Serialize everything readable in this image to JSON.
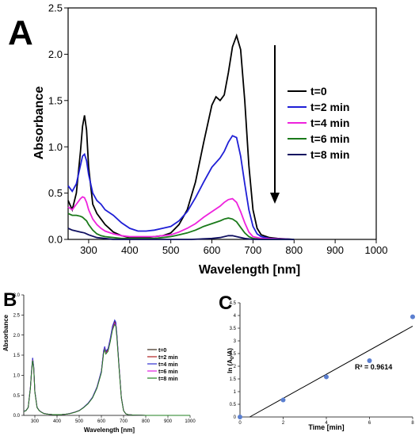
{
  "panels": {
    "a": {
      "letter": "A"
    },
    "b": {
      "letter": "B"
    },
    "c": {
      "letter": "C"
    }
  },
  "chart_data": [
    {
      "panel": "A",
      "type": "line",
      "xlabel": "Wavelength [nm]",
      "ylabel": "Absorbance",
      "xlim": [
        250,
        1000
      ],
      "ylim": [
        0,
        2.5
      ],
      "xticks": [
        300,
        400,
        500,
        600,
        700,
        800,
        900,
        1000
      ],
      "yticks": [
        0.0,
        0.5,
        1.0,
        1.5,
        2.0,
        2.5
      ],
      "legend_position": "right",
      "annotation": "downward arrow indicating decreasing absorbance over time",
      "series": [
        {
          "name": "t=0",
          "color": "#000000",
          "x": [
            250,
            260,
            270,
            280,
            285,
            290,
            295,
            300,
            310,
            320,
            330,
            340,
            360,
            380,
            400,
            420,
            440,
            460,
            480,
            500,
            520,
            540,
            560,
            580,
            600,
            610,
            620,
            630,
            640,
            650,
            660,
            670,
            680,
            690,
            700,
            710,
            720,
            740,
            760,
            800
          ],
          "y": [
            0.42,
            0.32,
            0.5,
            0.95,
            1.22,
            1.34,
            1.18,
            0.78,
            0.38,
            0.28,
            0.22,
            0.16,
            0.08,
            0.04,
            0.02,
            0.02,
            0.02,
            0.03,
            0.04,
            0.07,
            0.16,
            0.32,
            0.62,
            1.05,
            1.45,
            1.54,
            1.5,
            1.56,
            1.8,
            2.08,
            2.2,
            2.05,
            1.5,
            0.8,
            0.32,
            0.12,
            0.05,
            0.02,
            0.01,
            0.0
          ]
        },
        {
          "name": "t=2 min",
          "color": "#1f1fd6",
          "x": [
            250,
            260,
            270,
            280,
            285,
            290,
            295,
            300,
            310,
            320,
            330,
            340,
            360,
            380,
            400,
            420,
            440,
            460,
            480,
            500,
            520,
            540,
            560,
            580,
            600,
            620,
            630,
            640,
            650,
            660,
            670,
            680,
            690,
            700,
            710,
            720,
            740,
            800
          ],
          "y": [
            0.58,
            0.52,
            0.6,
            0.8,
            0.9,
            0.92,
            0.85,
            0.7,
            0.5,
            0.42,
            0.38,
            0.32,
            0.26,
            0.18,
            0.12,
            0.09,
            0.09,
            0.1,
            0.12,
            0.14,
            0.2,
            0.3,
            0.45,
            0.62,
            0.78,
            0.88,
            0.95,
            1.05,
            1.12,
            1.1,
            0.9,
            0.6,
            0.32,
            0.14,
            0.06,
            0.03,
            0.01,
            0.0
          ]
        },
        {
          "name": "t=4 min",
          "color": "#ee22dd",
          "x": [
            250,
            260,
            270,
            280,
            285,
            290,
            295,
            300,
            310,
            320,
            330,
            340,
            360,
            380,
            400,
            420,
            440,
            460,
            480,
            500,
            520,
            540,
            560,
            580,
            600,
            620,
            630,
            640,
            650,
            660,
            670,
            680,
            690,
            700,
            720,
            800
          ],
          "y": [
            0.35,
            0.32,
            0.38,
            0.44,
            0.46,
            0.45,
            0.4,
            0.32,
            0.22,
            0.16,
            0.12,
            0.09,
            0.06,
            0.04,
            0.03,
            0.03,
            0.03,
            0.03,
            0.04,
            0.05,
            0.08,
            0.12,
            0.17,
            0.24,
            0.3,
            0.36,
            0.4,
            0.43,
            0.44,
            0.4,
            0.3,
            0.18,
            0.08,
            0.03,
            0.01,
            0.0
          ]
        },
        {
          "name": "t=6 min",
          "color": "#1a7a1a",
          "x": [
            250,
            260,
            270,
            280,
            285,
            290,
            295,
            300,
            310,
            320,
            330,
            340,
            360,
            380,
            400,
            420,
            440,
            460,
            480,
            500,
            520,
            540,
            560,
            580,
            600,
            620,
            630,
            640,
            650,
            660,
            670,
            680,
            690,
            700,
            720,
            800
          ],
          "y": [
            0.28,
            0.26,
            0.26,
            0.25,
            0.24,
            0.22,
            0.2,
            0.16,
            0.1,
            0.06,
            0.04,
            0.03,
            0.02,
            0.01,
            0.01,
            0.01,
            0.01,
            0.01,
            0.02,
            0.03,
            0.05,
            0.07,
            0.1,
            0.14,
            0.17,
            0.2,
            0.22,
            0.23,
            0.22,
            0.19,
            0.13,
            0.07,
            0.03,
            0.01,
            0.0,
            0.0
          ]
        },
        {
          "name": "t=8 min",
          "color": "#101060",
          "x": [
            250,
            260,
            270,
            280,
            290,
            300,
            320,
            340,
            360,
            400,
            450,
            500,
            550,
            600,
            620,
            640,
            650,
            660,
            680,
            700,
            800
          ],
          "y": [
            0.12,
            0.1,
            0.09,
            0.08,
            0.07,
            0.05,
            0.02,
            0.01,
            0.0,
            0.0,
            0.0,
            0.0,
            0.0,
            0.01,
            0.02,
            0.04,
            0.04,
            0.03,
            0.01,
            0.0,
            0.0
          ]
        }
      ]
    },
    {
      "panel": "B",
      "type": "line",
      "xlabel": "Wavelength [nm]",
      "ylabel": "Absorbance",
      "xlim": [
        250,
        1000
      ],
      "ylim": [
        0,
        3.0
      ],
      "xticks": [
        300,
        400,
        500,
        600,
        700,
        800,
        900,
        1000
      ],
      "yticks": [
        0.0,
        0.5,
        1.0,
        1.5,
        2.0,
        2.5,
        3.0
      ],
      "legend_position": "right",
      "series": [
        {
          "name": "t=0",
          "color": "#3a2a1a",
          "scale": 1.0
        },
        {
          "name": "t=2 min",
          "color": "#b02020",
          "scale": 0.985
        },
        {
          "name": "t=4 min",
          "color": "#3030d0",
          "scale": 1.01
        },
        {
          "name": "t=6 min",
          "color": "#e020e0",
          "scale": 0.975
        },
        {
          "name": "t=8 min",
          "color": "#208020",
          "scale": 0.965
        }
      ],
      "x": [
        250,
        260,
        270,
        280,
        285,
        290,
        295,
        300,
        310,
        320,
        330,
        340,
        360,
        380,
        400,
        420,
        440,
        460,
        480,
        500,
        520,
        540,
        560,
        580,
        600,
        610,
        615,
        620,
        630,
        640,
        650,
        660,
        665,
        670,
        680,
        690,
        700,
        710,
        720,
        740,
        800,
        1000
      ],
      "y": [
        0.1,
        0.12,
        0.2,
        0.7,
        1.1,
        1.42,
        1.2,
        0.6,
        0.2,
        0.12,
        0.08,
        0.05,
        0.03,
        0.02,
        0.02,
        0.02,
        0.03,
        0.05,
        0.08,
        0.12,
        0.2,
        0.3,
        0.45,
        0.7,
        1.1,
        1.6,
        1.7,
        1.58,
        1.65,
        1.9,
        2.2,
        2.35,
        2.3,
        2.0,
        1.2,
        0.45,
        0.12,
        0.04,
        0.02,
        0.01,
        0.0,
        0.0
      ]
    },
    {
      "panel": "C",
      "type": "scatter",
      "xlabel": "Time [min]",
      "ylabel": "ln (A0/A)",
      "ylabel_main": "ln (A",
      "ylabel_sub": "0",
      "ylabel_tail": "/A)",
      "xlim": [
        0,
        8
      ],
      "ylim": [
        0,
        4.5
      ],
      "xticks": [
        0,
        2,
        4,
        6,
        8
      ],
      "yticks": [
        0,
        0.5,
        1,
        1.5,
        2,
        2.5,
        3,
        3.5,
        4,
        4.5
      ],
      "x": [
        0,
        2,
        4,
        6,
        8
      ],
      "y": [
        0,
        0.67,
        1.58,
        2.22,
        3.95
      ],
      "point_color": "#5b7fd0",
      "trendline": {
        "x": [
          0.45,
          8
        ],
        "y": [
          0,
          3.58
        ]
      },
      "r2_label": "R² = 0.9614"
    }
  ]
}
